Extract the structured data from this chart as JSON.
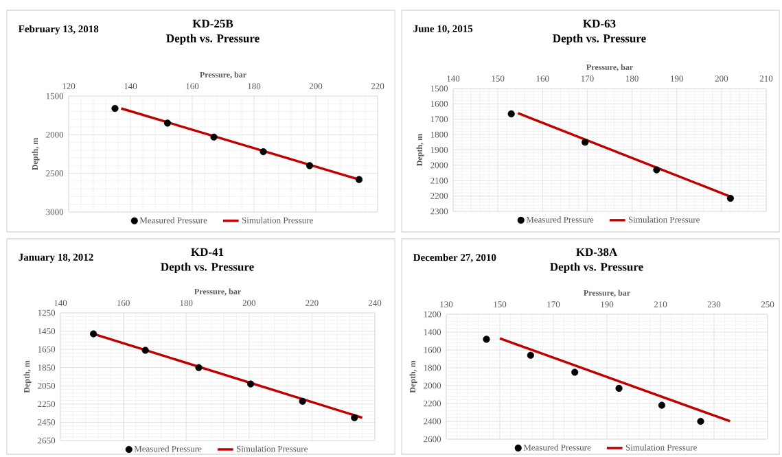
{
  "chart_data": [
    {
      "type": "scatter",
      "title": "KD-25B",
      "subtitle": "Depth vs. Pressure",
      "annotations": [
        "February 13, 2018"
      ],
      "xlabel": "Pressure, bar",
      "ylabel": "Depth, m",
      "xlim": [
        120,
        220
      ],
      "xticks": [
        120,
        140,
        160,
        180,
        200,
        220
      ],
      "ylim": [
        3000,
        1500
      ],
      "yticks": [
        1500,
        2000,
        2500,
        3000
      ],
      "grid": true,
      "legend": "bottom",
      "series": [
        {
          "name": "Measured Pressure",
          "marker": "circle",
          "color": "#000000",
          "x": [
            135,
            152,
            167,
            183,
            198,
            214
          ],
          "values": [
            1660,
            1850,
            2030,
            2220,
            2400,
            2580
          ]
        },
        {
          "name": "Simulation Pressure",
          "type": "line",
          "color": "#c00000",
          "x": [
            137,
            214
          ],
          "values": [
            1660,
            2580
          ]
        }
      ]
    },
    {
      "type": "scatter",
      "title": "KD-63",
      "subtitle": "Depth vs. Pressure",
      "annotations": [
        "June 10, 2015"
      ],
      "xlabel": "Pressure, bar",
      "ylabel": "Depth, m",
      "xlim": [
        140,
        210
      ],
      "xticks": [
        140,
        150,
        160,
        170,
        180,
        190,
        200,
        210
      ],
      "ylim": [
        2300,
        1500
      ],
      "yticks": [
        1500,
        1600,
        1700,
        1800,
        1900,
        2000,
        2100,
        2200,
        2300
      ],
      "grid": true,
      "legend": "bottom",
      "series": [
        {
          "name": "Measured Pressure",
          "marker": "circle",
          "color": "#000000",
          "x": [
            153,
            169.5,
            185.5,
            202
          ],
          "values": [
            1665,
            1850,
            2030,
            2215
          ]
        },
        {
          "name": "Simulation Pressure",
          "type": "line",
          "color": "#c00000",
          "x": [
            154.5,
            202.5
          ],
          "values": [
            1660,
            2210
          ]
        }
      ]
    },
    {
      "type": "scatter",
      "title": "KD-41",
      "subtitle": "Depth vs. Pressure",
      "annotations": [
        "January 18, 2012"
      ],
      "xlabel": "Pressure, bar",
      "ylabel": "Depth, m",
      "xlim": [
        140,
        240
      ],
      "xticks": [
        140,
        160,
        180,
        200,
        220,
        240
      ],
      "ylim": [
        2650,
        1250
      ],
      "yticks": [
        1250,
        1450,
        1650,
        1850,
        2050,
        2250,
        2450,
        2650
      ],
      "grid": true,
      "legend": "bottom",
      "series": [
        {
          "name": "Measured Pressure",
          "marker": "circle",
          "color": "#000000",
          "x": [
            150.5,
            167,
            184,
            200.5,
            217,
            233.5
          ],
          "values": [
            1480,
            1660,
            1850,
            2030,
            2220,
            2400
          ]
        },
        {
          "name": "Simulation Pressure",
          "type": "line",
          "color": "#c00000",
          "x": [
            150.5,
            236
          ],
          "values": [
            1480,
            2400
          ]
        }
      ]
    },
    {
      "type": "scatter",
      "title": "KD-38A",
      "subtitle": "Depth vs. Pressure",
      "annotations": [
        "December 27, 2010"
      ],
      "xlabel": "Pressure, bar",
      "ylabel": "Depth, m",
      "xlim": [
        130,
        250
      ],
      "xticks": [
        130,
        150,
        170,
        190,
        210,
        230,
        250
      ],
      "ylim": [
        2600,
        1200
      ],
      "yticks": [
        1200,
        1400,
        1600,
        1800,
        2000,
        2200,
        2400,
        2600
      ],
      "grid": true,
      "legend": "bottom",
      "series": [
        {
          "name": "Measured Pressure",
          "marker": "circle",
          "color": "#000000",
          "x": [
            145,
            161.5,
            178,
            194.5,
            210.5,
            225
          ],
          "values": [
            1480,
            1660,
            1850,
            2030,
            2220,
            2400
          ]
        },
        {
          "name": "Simulation Pressure",
          "type": "line",
          "color": "#c00000",
          "x": [
            150,
            236
          ],
          "values": [
            1470,
            2400
          ]
        }
      ]
    }
  ]
}
